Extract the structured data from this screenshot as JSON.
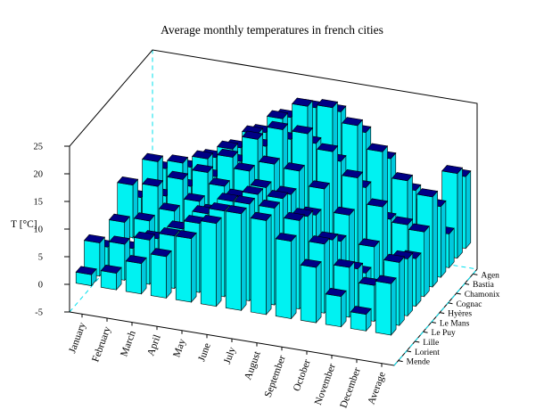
{
  "chart_data": {
    "type": "bar",
    "variant": "3d-column-boxes",
    "title": "Average monthly temperatures in french cities",
    "zlabel": "T [°C]",
    "categories": [
      "January",
      "February",
      "March",
      "April",
      "May",
      "June",
      "July",
      "August",
      "September",
      "October",
      "November",
      "December",
      "Average"
    ],
    "series": [
      {
        "name": "Agen",
        "values": [
          5.5,
          6.5,
          9.0,
          11.5,
          15.0,
          18.5,
          21.0,
          21.0,
          18.0,
          14.0,
          9.0,
          6.0,
          13.0
        ]
      },
      {
        "name": "Bastia",
        "values": [
          8.5,
          9.0,
          10.5,
          13.0,
          16.5,
          20.0,
          23.0,
          23.5,
          21.0,
          17.0,
          12.5,
          9.5,
          15.3
        ]
      },
      {
        "name": "Chamonix",
        "values": [
          -3.0,
          -1.5,
          2.0,
          5.5,
          10.0,
          13.0,
          15.0,
          14.5,
          11.5,
          7.0,
          1.5,
          -2.0,
          6.1
        ]
      },
      {
        "name": "Cognac",
        "values": [
          5.5,
          6.5,
          9.0,
          11.5,
          15.0,
          18.5,
          20.5,
          20.5,
          18.0,
          14.0,
          9.0,
          6.0,
          12.8
        ]
      },
      {
        "name": "Hyères",
        "values": [
          9.5,
          10.0,
          12.0,
          14.0,
          17.5,
          21.5,
          24.0,
          24.0,
          21.5,
          17.5,
          13.0,
          10.5,
          16.3
        ]
      },
      {
        "name": "Le Mans",
        "values": [
          4.5,
          5.5,
          8.0,
          10.5,
          14.0,
          17.5,
          19.5,
          19.0,
          16.5,
          12.5,
          7.5,
          5.0,
          11.7
        ]
      },
      {
        "name": "Le Puy",
        "values": [
          1.0,
          2.0,
          4.5,
          7.0,
          11.0,
          14.5,
          17.0,
          16.5,
          13.5,
          9.5,
          4.5,
          2.0,
          8.6
        ]
      },
      {
        "name": "Lille",
        "values": [
          3.5,
          4.0,
          6.5,
          9.0,
          12.5,
          15.5,
          17.5,
          17.5,
          15.0,
          11.5,
          7.0,
          4.5,
          10.3
        ]
      },
      {
        "name": "Lorient",
        "values": [
          6.0,
          6.5,
          8.0,
          9.5,
          12.5,
          15.5,
          17.5,
          17.5,
          16.0,
          12.5,
          9.0,
          6.5,
          11.4
        ]
      },
      {
        "name": "Mende",
        "values": [
          2.0,
          3.0,
          5.5,
          7.5,
          11.5,
          15.0,
          17.5,
          17.0,
          14.0,
          10.0,
          5.5,
          3.0,
          9.3
        ]
      }
    ],
    "series_order_note": "listed back row (Agen) to front row (Mende)",
    "zlim": [
      -5,
      25
    ],
    "zticks": [
      -5,
      0,
      5,
      10,
      15,
      20,
      25
    ],
    "grid": "off",
    "legend": "none",
    "colors": {
      "bar_front": "#00f2f2",
      "bar_side": "#00c9dd",
      "bar_top": "#000085",
      "hidden_line": "#00e0ee",
      "frame": "#000000",
      "background": "#ffffff"
    }
  }
}
